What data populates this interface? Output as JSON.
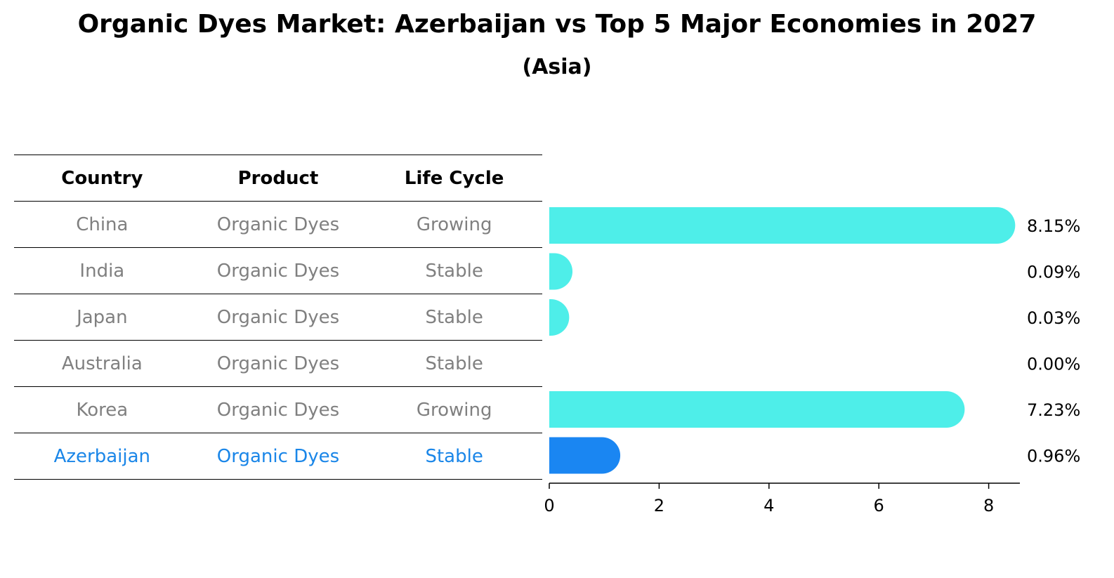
{
  "title": "Organic Dyes Market: Azerbaijan vs Top 5 Major Economies in 2027",
  "subtitle": "(Asia)",
  "table": {
    "headers": [
      "Country",
      "Product",
      "Life Cycle"
    ],
    "rows": [
      {
        "country": "China",
        "product": "Organic Dyes",
        "life_cycle": "Growing"
      },
      {
        "country": "India",
        "product": "Organic Dyes",
        "life_cycle": "Stable"
      },
      {
        "country": "Japan",
        "product": "Organic Dyes",
        "life_cycle": "Stable"
      },
      {
        "country": "Australia",
        "product": "Organic Dyes",
        "life_cycle": "Stable"
      },
      {
        "country": "Korea",
        "product": "Organic Dyes",
        "life_cycle": "Growing"
      },
      {
        "country": "Azerbaijan",
        "product": "Organic Dyes",
        "life_cycle": "Stable"
      }
    ]
  },
  "chart_data": {
    "type": "bar",
    "orientation": "horizontal",
    "categories": [
      "China",
      "India",
      "Japan",
      "Australia",
      "Korea",
      "Azerbaijan"
    ],
    "values": [
      8.15,
      0.09,
      0.03,
      0.0,
      7.23,
      0.96
    ],
    "value_labels": [
      "8.15%",
      "0.09%",
      "0.03%",
      "0.00%",
      "7.23%",
      "0.96%"
    ],
    "xlim": [
      0,
      8.6
    ],
    "xticks": [
      0,
      2,
      4,
      6,
      8
    ],
    "grid": false,
    "colors": {
      "default": "#4eeee9",
      "highlight": "#1a86f2"
    },
    "highlight_category": "Azerbaijan"
  }
}
